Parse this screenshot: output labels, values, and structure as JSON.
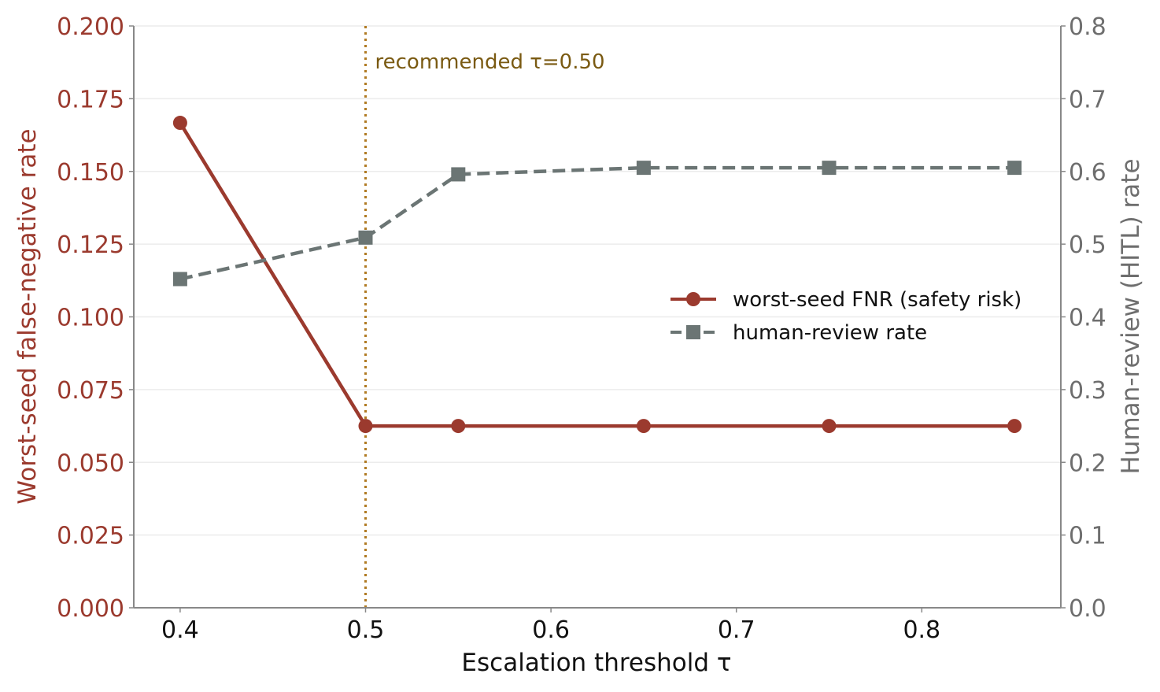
{
  "chart_data": {
    "type": "line",
    "title": "",
    "xlabel": "Escalation threshold  τ",
    "ylabel_left": "Worst-seed false-negative rate",
    "ylabel_right": "Human-review (HITL) rate",
    "xlim": [
      0.375,
      0.875
    ],
    "ylim_left": [
      0,
      0.2
    ],
    "ylim_right": [
      0,
      0.8
    ],
    "x_ticks": [
      "0.4",
      "0.5",
      "0.6",
      "0.7",
      "0.8"
    ],
    "x_tick_values": [
      0.4,
      0.5,
      0.6,
      0.7,
      0.8
    ],
    "y_left_ticks": [
      "0.000",
      "0.025",
      "0.050",
      "0.075",
      "0.100",
      "0.125",
      "0.150",
      "0.175",
      "0.200"
    ],
    "y_left_tick_values": [
      0,
      0.025,
      0.05,
      0.075,
      0.1,
      0.125,
      0.15,
      0.175,
      0.2
    ],
    "y_right_ticks": [
      "0.0",
      "0.1",
      "0.2",
      "0.3",
      "0.4",
      "0.5",
      "0.6",
      "0.7",
      "0.8"
    ],
    "y_right_tick_values": [
      0,
      0.1,
      0.2,
      0.3,
      0.4,
      0.5,
      0.6,
      0.7,
      0.8
    ],
    "grid": "horizontal",
    "legend_position": "center-right",
    "series": [
      {
        "name": "worst-seed FNR (safety risk)",
        "axis": "left",
        "color": "#9b3a2e",
        "marker": "circle",
        "line_style": "solid",
        "x": [
          0.4,
          0.5,
          0.55,
          0.65,
          0.75,
          0.85
        ],
        "y": [
          0.1667,
          0.0625,
          0.0625,
          0.0625,
          0.0625,
          0.0625
        ]
      },
      {
        "name": "human-review rate",
        "axis": "right",
        "color": "#6b7574",
        "marker": "square",
        "line_style": "dashed",
        "x": [
          0.4,
          0.5,
          0.55,
          0.65,
          0.75,
          0.85
        ],
        "y": [
          0.452,
          0.509,
          0.596,
          0.605,
          0.605,
          0.605
        ]
      }
    ],
    "annotations": [
      {
        "label": "recommended  τ=0.50",
        "x": 0.5,
        "color": "#b07a22",
        "line_style": "dotted"
      }
    ]
  }
}
